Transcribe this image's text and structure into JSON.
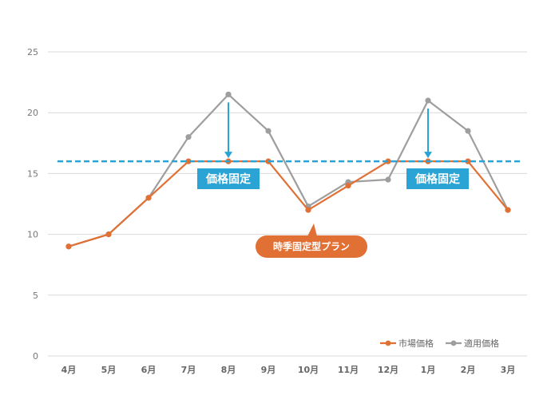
{
  "chart_data": {
    "type": "line",
    "title": "",
    "xlabel": "",
    "ylabel": "",
    "categories": [
      "4月",
      "5月",
      "6月",
      "7月",
      "8月",
      "9月",
      "10月",
      "11月",
      "12月",
      "1月",
      "2月",
      "3月"
    ],
    "ylim": [
      0,
      25
    ],
    "yticks": [
      0,
      5,
      10,
      15,
      20,
      25
    ],
    "grid": true,
    "legend_position": "bottom-right",
    "series": [
      {
        "name": "市場価格",
        "color": "#E07034",
        "values": [
          9,
          10,
          13,
          16,
          16,
          16,
          12,
          14,
          16,
          16,
          16,
          12
        ]
      },
      {
        "name": "適用価格",
        "color": "#9E9E9E",
        "values": [
          9,
          10,
          13,
          18,
          21.5,
          18.5,
          12.3,
          14.3,
          14.5,
          21,
          18.5,
          12
        ]
      }
    ],
    "reference_line": {
      "value": 16,
      "color": "#2AA4D5",
      "style": "dashed"
    },
    "annotations": {
      "fixed_price_label": "価格固定",
      "plan_label": "時季固定型プラン",
      "fixed_color": "#2AA4D5",
      "plan_color": "#E07034"
    }
  }
}
